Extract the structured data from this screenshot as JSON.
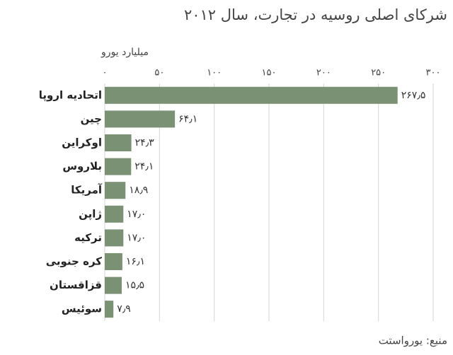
{
  "chart_data": {
    "type": "bar",
    "orientation": "horizontal",
    "title": "شرکای اصلی روسیه در تجارت، سال ۲۰۱۲",
    "x_label": "میلیارد یورو",
    "source": "منبع: یورواستت",
    "categories": [
      "اتحادیه اروپا",
      "چین",
      "اوکراین",
      "بلاروس",
      "آمریکا",
      "ژاپن",
      "ترکیه",
      "کره جنوبی",
      "قزاقستان",
      "سوئیس"
    ],
    "values": [
      267.5,
      64.1,
      24.3,
      24.1,
      18.9,
      17.0,
      17.0,
      16.1,
      15.5,
      7.9
    ],
    "value_labels": [
      "۲۶۷٫۵",
      "۶۴٫۱",
      "۲۴٫۳",
      "۲۴٫۱",
      "۱۸٫۹",
      "۱۷٫۰",
      "۱۷٫۰",
      "۱۶٫۱",
      "۱۵٫۵",
      "۷٫۹"
    ],
    "color": "#7b9174",
    "xlim": [
      0,
      300
    ],
    "xticks": [
      {
        "value": 0,
        "label": "۰"
      },
      {
        "value": 50,
        "label": "۵۰"
      },
      {
        "value": 100,
        "label": "۱۰۰"
      },
      {
        "value": 150,
        "label": "۱۵۰"
      },
      {
        "value": 200,
        "label": "۲۰۰"
      },
      {
        "value": 250,
        "label": "۲۵۰"
      },
      {
        "value": 300,
        "label": "۳۰۰"
      }
    ],
    "grid": true
  }
}
